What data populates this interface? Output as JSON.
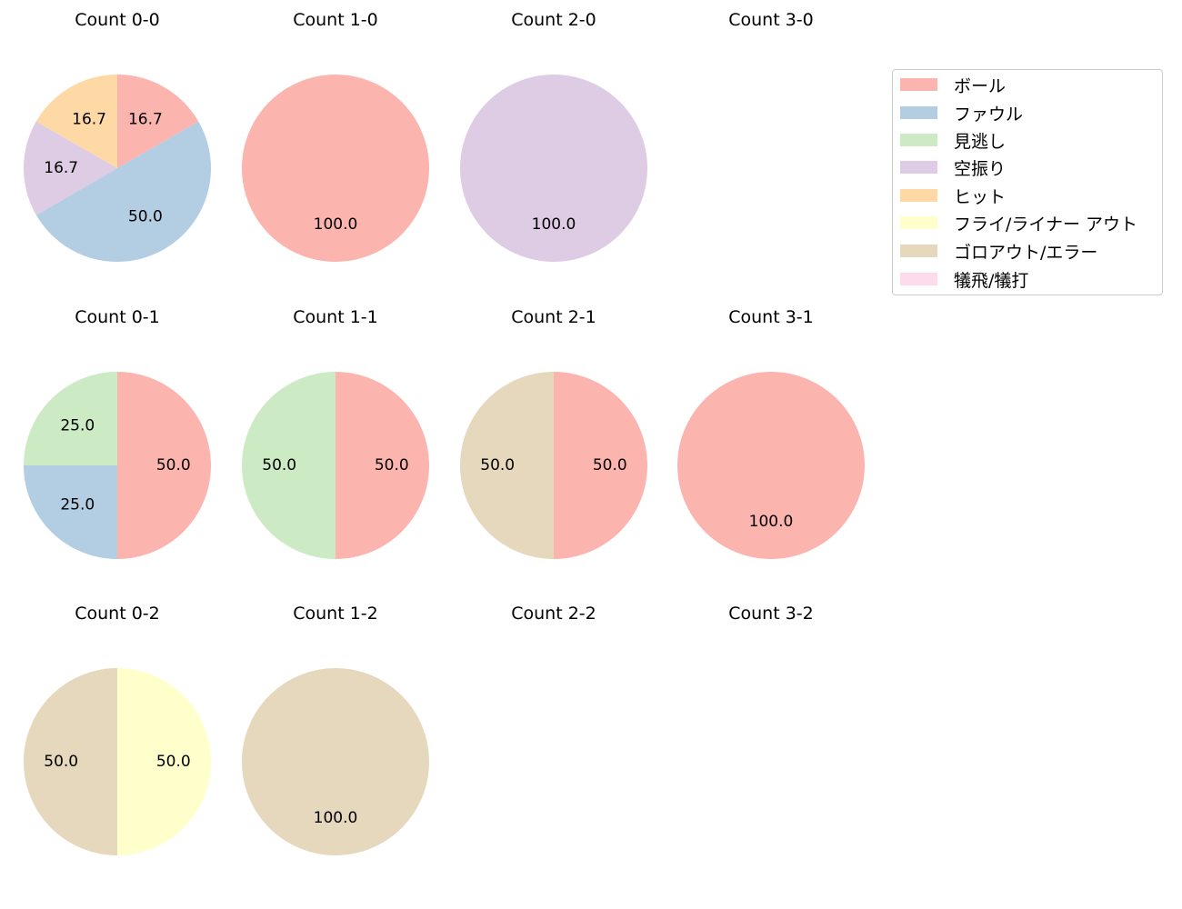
{
  "chart_data": {
    "type": "pie",
    "layout": "grid 3 rows x 4 columns of pie charts, shared legend at top-right",
    "legend": [
      {
        "label": "ボール",
        "color": "#fbb4ae"
      },
      {
        "label": "ファウル",
        "color": "#b3cde3"
      },
      {
        "label": "見逃し",
        "color": "#ccebc5"
      },
      {
        "label": "空振り",
        "color": "#decbe4"
      },
      {
        "label": "ヒット",
        "color": "#fed9a6"
      },
      {
        "label": "フライ/ライナー アウト",
        "color": "#ffffcc"
      },
      {
        "label": "ゴロアウト/エラー",
        "color": "#e5d8bd"
      },
      {
        "label": "犠飛/犠打",
        "color": "#fddaec"
      }
    ],
    "charts": [
      {
        "title": "Count 0-0",
        "slices": [
          {
            "category": "ボール",
            "value": 16.7
          },
          {
            "category": "ファウル",
            "value": 50.0
          },
          {
            "category": "空振り",
            "value": 16.7
          },
          {
            "category": "ヒット",
            "value": 16.7
          }
        ]
      },
      {
        "title": "Count 1-0",
        "slices": [
          {
            "category": "ボール",
            "value": 100.0
          }
        ]
      },
      {
        "title": "Count 2-0",
        "slices": [
          {
            "category": "空振り",
            "value": 100.0
          }
        ]
      },
      {
        "title": "Count 3-0",
        "slices": []
      },
      {
        "title": "Count 0-1",
        "slices": [
          {
            "category": "ボール",
            "value": 50.0
          },
          {
            "category": "ファウル",
            "value": 25.0
          },
          {
            "category": "見逃し",
            "value": 25.0
          }
        ]
      },
      {
        "title": "Count 1-1",
        "slices": [
          {
            "category": "ボール",
            "value": 50.0
          },
          {
            "category": "見逃し",
            "value": 50.0
          }
        ]
      },
      {
        "title": "Count 2-1",
        "slices": [
          {
            "category": "ボール",
            "value": 50.0
          },
          {
            "category": "ゴロアウト/エラー",
            "value": 50.0
          }
        ]
      },
      {
        "title": "Count 3-1",
        "slices": [
          {
            "category": "ボール",
            "value": 100.0
          }
        ]
      },
      {
        "title": "Count 0-2",
        "slices": [
          {
            "category": "フライ/ライナー アウト",
            "value": 50.0
          },
          {
            "category": "ゴロアウト/エラー",
            "value": 50.0
          }
        ]
      },
      {
        "title": "Count 1-2",
        "slices": [
          {
            "category": "ゴロアウト/エラー",
            "value": 100.0
          }
        ]
      },
      {
        "title": "Count 2-2",
        "slices": []
      },
      {
        "title": "Count 3-2",
        "slices": []
      }
    ]
  }
}
